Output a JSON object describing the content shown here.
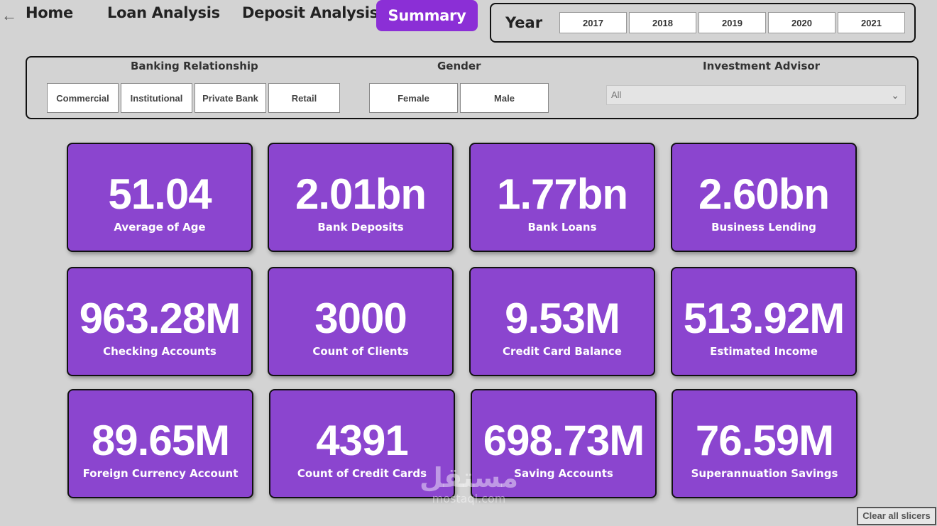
{
  "nav": {
    "back_icon": "arrow-left-icon",
    "home": "Home",
    "loan": "Loan Analysis",
    "deposit": "Deposit Analysis",
    "summary": "Summary",
    "active_color": "#8b2fd6"
  },
  "year_slicer": {
    "label": "Year",
    "years": [
      "2017",
      "2018",
      "2019",
      "2020",
      "2021"
    ]
  },
  "filters": {
    "banking_relationship": {
      "title": "Banking Relationship",
      "options": [
        "Commercial",
        "Institutional",
        "Private Bank",
        "Retail"
      ]
    },
    "gender": {
      "title": "Gender",
      "options": [
        "Female",
        "Male"
      ]
    },
    "investment_advisor": {
      "title": "Investment Advisor",
      "selected": "All"
    }
  },
  "kpis": [
    {
      "value": "51.04",
      "label": "Average of Age"
    },
    {
      "value": "2.01bn",
      "label": "Bank Deposits"
    },
    {
      "value": "1.77bn",
      "label": "Bank Loans"
    },
    {
      "value": "2.60bn",
      "label": "Business Lending"
    },
    {
      "value": "963.28M",
      "label": "Checking Accounts"
    },
    {
      "value": "3000",
      "label": "Count of Clients"
    },
    {
      "value": "9.53M",
      "label": "Credit Card Balance"
    },
    {
      "value": "513.92M",
      "label": "Estimated Income"
    },
    {
      "value": "89.65M",
      "label": "Foreign Currency Account"
    },
    {
      "value": "4391",
      "label": "Count of Credit Cards"
    },
    {
      "value": "698.73M",
      "label": "Saving Accounts"
    },
    {
      "value": "76.59M",
      "label": "Superannuation Savings"
    }
  ],
  "card_color": "#8b45cf",
  "clear_slicers": "Clear all slicers",
  "watermark": {
    "main": "مستقل",
    "sub": "mostaql.com"
  }
}
